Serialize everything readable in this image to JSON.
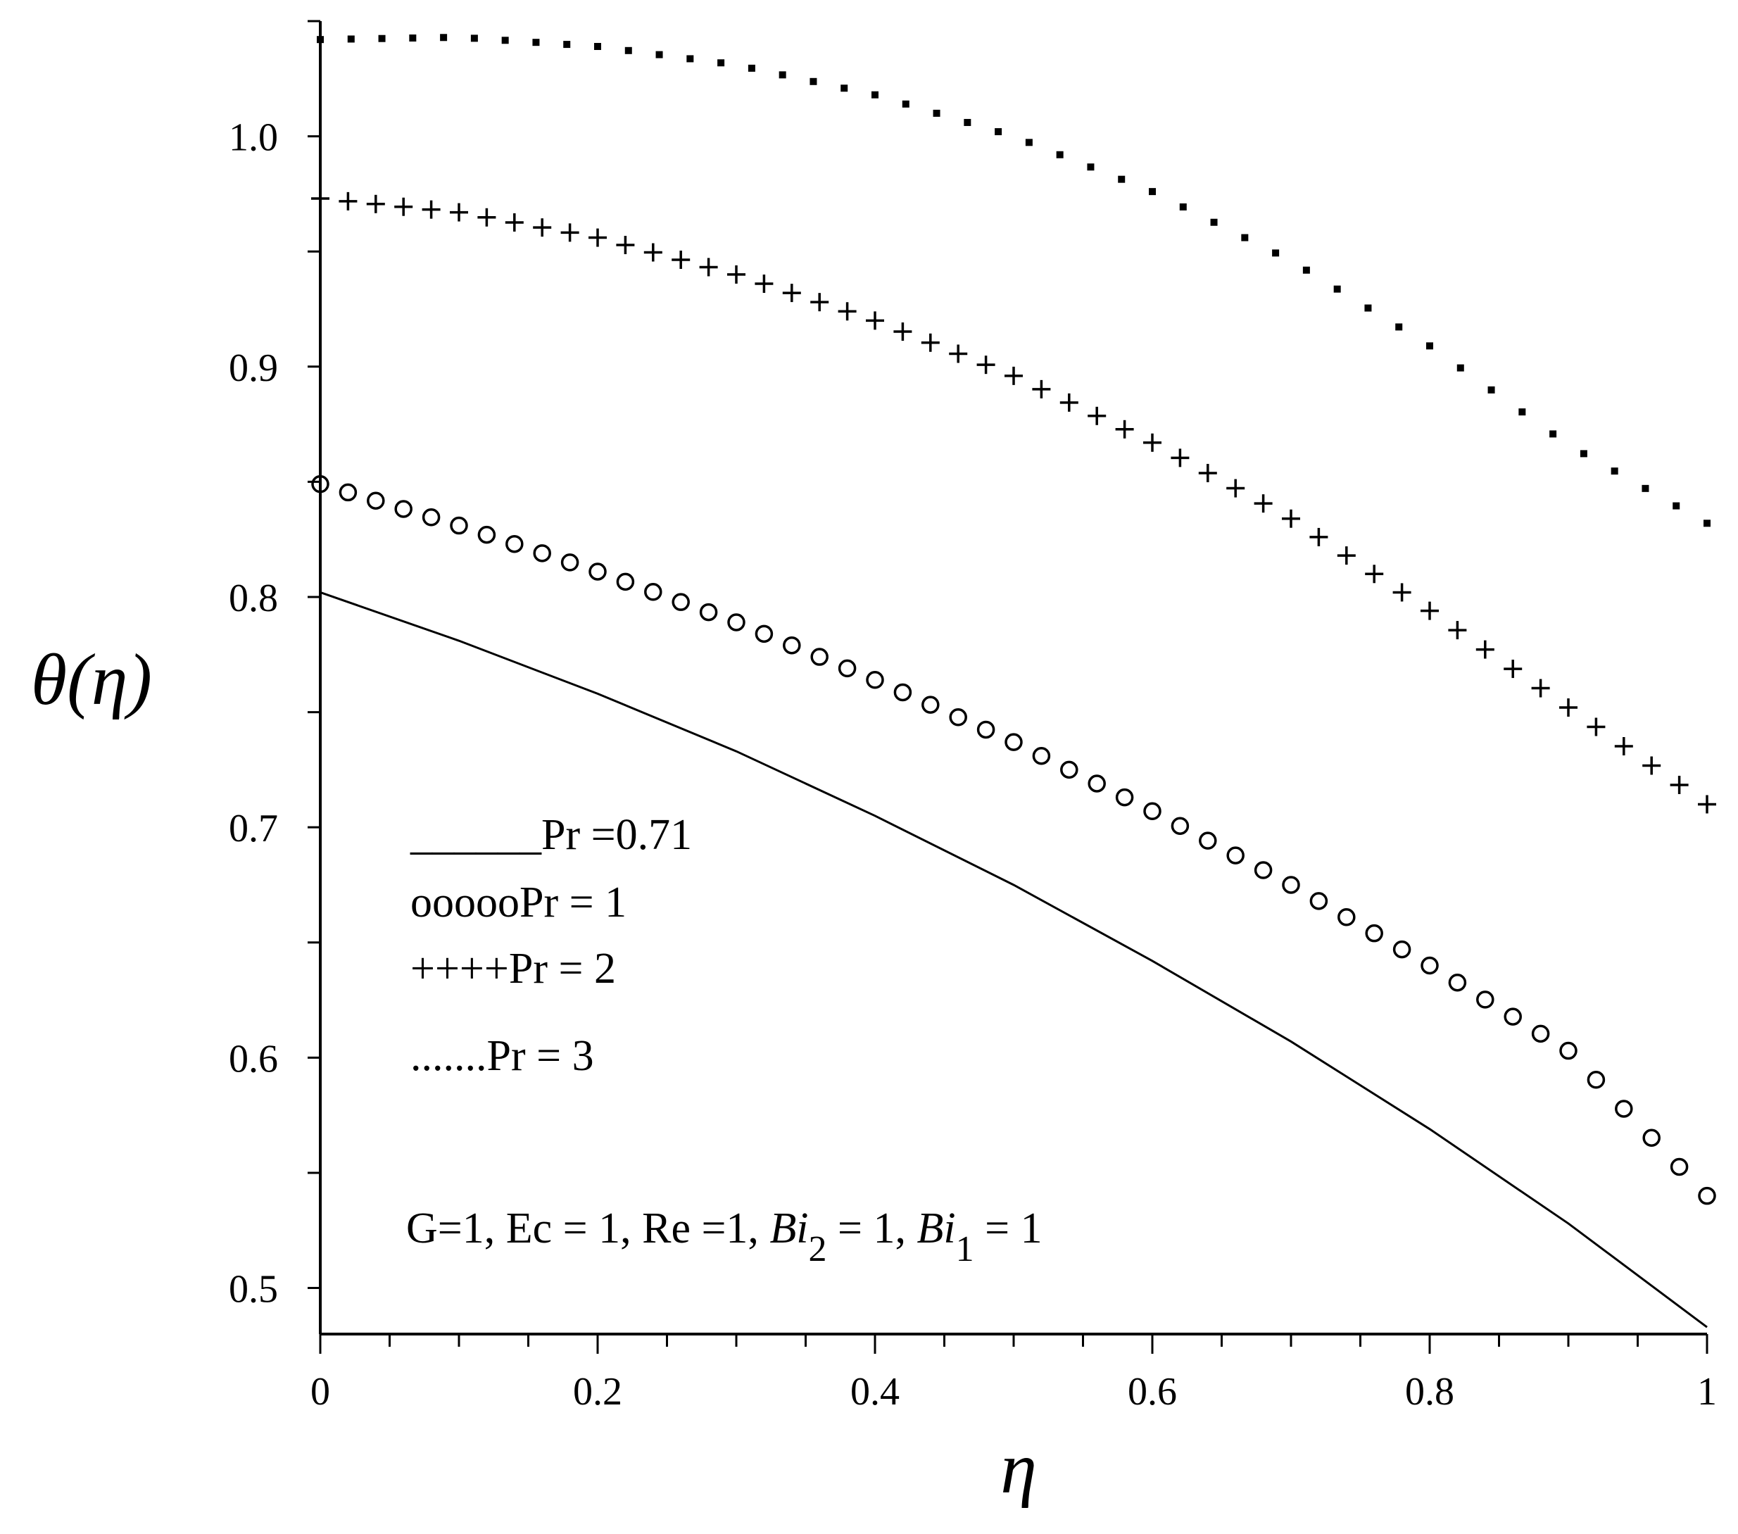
{
  "chart_data": {
    "type": "line",
    "title": "",
    "xlabel": "η",
    "ylabel": "θ(η)",
    "xlim": [
      0,
      1
    ],
    "ylim": [
      0.48,
      1.05
    ],
    "x_ticks": [
      0,
      0.2,
      0.4,
      0.6,
      0.8,
      1
    ],
    "x_tick_labels": [
      "0",
      "0.2",
      "0.4",
      "0.6",
      "0.8",
      "1"
    ],
    "y_ticks": [
      0.5,
      0.6,
      0.7,
      0.8,
      0.9,
      1.0
    ],
    "y_tick_labels": [
      "0.5",
      "0.6",
      "0.7",
      "0.8",
      "0.9",
      "1.0"
    ],
    "grid": false,
    "legend_placement": "center-left",
    "x": [
      0,
      0.1,
      0.2,
      0.3,
      0.4,
      0.5,
      0.6,
      0.7,
      0.8,
      0.9,
      1.0
    ],
    "series": [
      {
        "name": "Pr =0.71",
        "marker": "solid",
        "values": [
          0.802,
          0.781,
          0.758,
          0.733,
          0.705,
          0.675,
          0.642,
          0.607,
          0.569,
          0.528,
          0.483
        ]
      },
      {
        "name": "Pr = 1",
        "marker": "circle",
        "values": [
          0.849,
          0.831,
          0.811,
          0.789,
          0.764,
          0.737,
          0.707,
          0.675,
          0.64,
          0.603,
          0.54
        ]
      },
      {
        "name": "Pr = 2",
        "marker": "plus",
        "values": [
          0.973,
          0.967,
          0.956,
          0.94,
          0.92,
          0.896,
          0.867,
          0.834,
          0.794,
          0.752,
          0.71
        ]
      },
      {
        "name": "Pr = 3",
        "marker": "dot",
        "values": [
          1.042,
          1.043,
          1.039,
          1.031,
          1.018,
          1.0,
          0.976,
          0.946,
          0.909,
          0.866,
          0.832
        ]
      }
    ],
    "legend_entries": [
      {
        "symbol": "______",
        "label": "Pr =0.71"
      },
      {
        "symbol": "ooooo",
        "label": "Pr = 1"
      },
      {
        "symbol": "++++",
        "label": "Pr = 2"
      },
      {
        "symbol": ".......",
        "label": "Pr = 3"
      }
    ],
    "annotation": {
      "part1": "G=1, Ec = 1, Re =1, ",
      "bi2_base": "Bi",
      "bi2_sub": "2",
      "part2": " = 1,  ",
      "bi1_base": "Bi",
      "bi1_sub": "1",
      "part3": " = 1"
    },
    "colors": {
      "line": "#000000",
      "background": "#ffffff"
    }
  }
}
